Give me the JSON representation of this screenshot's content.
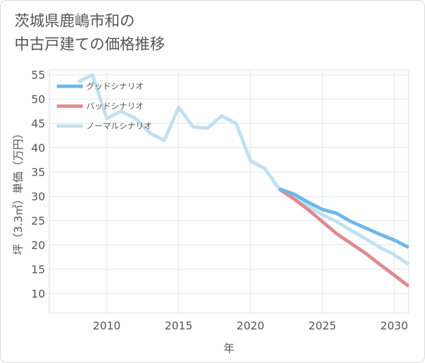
{
  "title": "茨城県鹿嶋市和の\n中古戸建ての価格推移",
  "chart_data": {
    "type": "line",
    "title": "茨城県鹿嶋市和の中古戸建ての価格推移",
    "xlabel": "年",
    "ylabel": "坪（3.3㎡）単価（万円）",
    "xlim": [
      2006,
      2031
    ],
    "ylim": [
      6,
      56
    ],
    "x_ticks": [
      2010,
      2015,
      2020,
      2025,
      2030
    ],
    "y_ticks": [
      10,
      15,
      20,
      25,
      30,
      35,
      40,
      45,
      50,
      55
    ],
    "grid": true,
    "legend_position": "top-left",
    "series": [
      {
        "name": "グッドシナリオ",
        "color": "#6cb8ec",
        "x": [
          2022,
          2023,
          2024,
          2025,
          2026,
          2027,
          2028,
          2029,
          2030,
          2031
        ],
        "values": [
          31.5,
          30.5,
          28.8,
          27.3,
          26.5,
          24.8,
          23.5,
          22.2,
          21.0,
          19.5
        ]
      },
      {
        "name": "バッドシナリオ",
        "color": "#de8a92",
        "x": [
          2022,
          2023,
          2024,
          2025,
          2026,
          2027,
          2028,
          2029,
          2030,
          2031
        ],
        "values": [
          31.5,
          29.5,
          27.3,
          24.8,
          22.3,
          20.3,
          18.3,
          16.0,
          13.8,
          11.5
        ]
      },
      {
        "name": "ノーマルシナリオ",
        "color": "#c2e0ef",
        "x": [
          2008,
          2009,
          2010,
          2011,
          2012,
          2013,
          2014,
          2015,
          2016,
          2017,
          2018,
          2019,
          2020,
          2021,
          2022,
          2023,
          2024,
          2025,
          2026,
          2027,
          2028,
          2029,
          2030,
          2031
        ],
        "values": [
          53.5,
          55.0,
          46.0,
          47.5,
          46.0,
          43.0,
          41.5,
          48.3,
          44.3,
          44.0,
          46.5,
          45.0,
          37.3,
          35.7,
          31.5,
          30.0,
          28.0,
          26.2,
          24.8,
          23.0,
          21.3,
          19.5,
          18.0,
          16.0
        ]
      }
    ]
  }
}
